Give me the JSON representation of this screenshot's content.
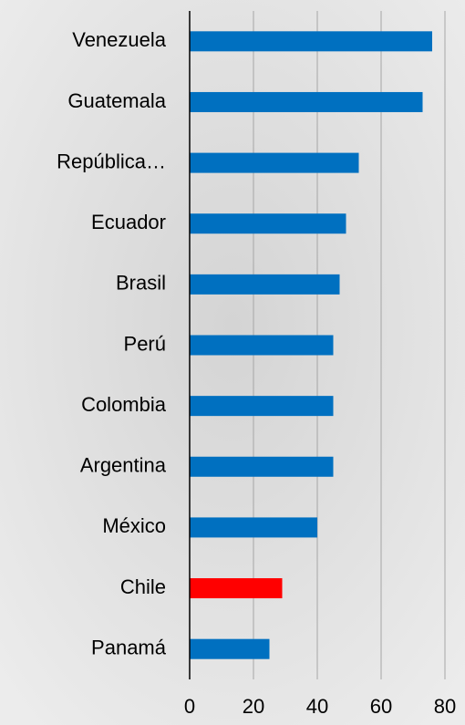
{
  "chart_data": {
    "type": "barh",
    "categories": [
      "Venezuela",
      "Guatemala",
      "República…",
      "Ecuador",
      "Brasil",
      "Perú",
      "Colombia",
      "Argentina",
      "México",
      "Chile",
      "Panamá"
    ],
    "values": [
      76,
      73,
      53,
      49,
      47,
      45,
      45,
      45,
      40,
      29,
      25
    ],
    "colors": [
      "#0070c0",
      "#0070c0",
      "#0070c0",
      "#0070c0",
      "#0070c0",
      "#0070c0",
      "#0070c0",
      "#0070c0",
      "#0070c0",
      "#ff0000",
      "#0070c0"
    ],
    "xlim": [
      0,
      80
    ],
    "xticks": [
      0,
      20,
      40,
      60,
      80
    ],
    "grid": true
  }
}
